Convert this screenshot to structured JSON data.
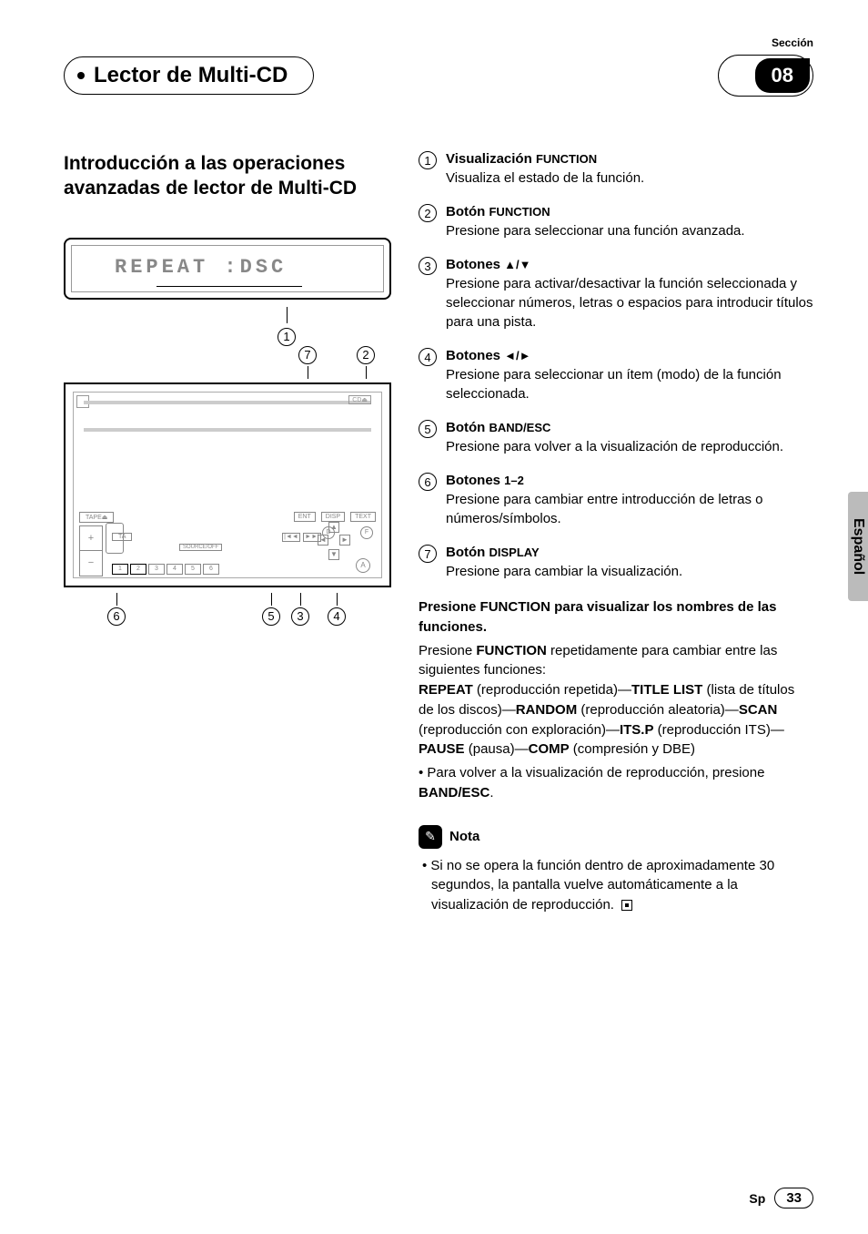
{
  "section_label": "Sección",
  "section_number": "08",
  "page_title": "Lector de Multi-CD",
  "subheading": "Introducción a las operaciones avanzadas de lector de Multi-CD",
  "lcd_text": "REPEAT :DSC",
  "side_tab": "Español",
  "footer_lang": "Sp",
  "page_number": "33",
  "callouts": {
    "c1": "1",
    "c2": "2",
    "c3": "3",
    "c4": "4",
    "c5": "5",
    "c6": "6",
    "c7": "7"
  },
  "definitions": [
    {
      "num": "1",
      "title_a": "Visualización ",
      "title_b": "FUNCTION",
      "text": "Visualiza el estado de la función."
    },
    {
      "num": "2",
      "title_a": "Botón ",
      "title_b": "FUNCTION",
      "text": "Presione para seleccionar una función avanzada."
    },
    {
      "num": "3",
      "title_a": "Botones ",
      "title_b": "▲/▼",
      "text": "Presione para activar/desactivar la función seleccionada y seleccionar números, letras o espacios para introducir títulos para una pista."
    },
    {
      "num": "4",
      "title_a": "Botones ",
      "title_b": "◄/►",
      "text": "Presione para seleccionar un ítem (modo) de la función seleccionada."
    },
    {
      "num": "5",
      "title_a": "Botón ",
      "title_b": "BAND/ESC",
      "text": "Presione para volver a la visualización de reproducción."
    },
    {
      "num": "6",
      "title_a": "Botones ",
      "title_b": "1–2",
      "text": "Presione para cambiar entre introducción de letras o números/símbolos."
    },
    {
      "num": "7",
      "title_a": "Botón ",
      "title_b": "DISPLAY",
      "text": "Presione para cambiar la visualización."
    }
  ],
  "instruction": {
    "lead": "Presione FUNCTION para visualizar los nombres de las funciones.",
    "p1a": "Presione ",
    "p1b": "FUNCTION",
    "p1c": " repetidamente para cambiar entre las siguientes funciones:",
    "seq": [
      {
        "b": "REPEAT",
        "t": " (reproducción repetida)—"
      },
      {
        "b": "TITLE LIST",
        "t": " (lista de títulos de los discos)—"
      },
      {
        "b": "RANDOM",
        "t": " (reproducción aleatoria)—"
      },
      {
        "b": "SCAN",
        "t": " (reproducción con exploración)—"
      },
      {
        "b": "ITS.P",
        "t": " (reproducción ITS)—"
      },
      {
        "b": "PAUSE",
        "t": " (pausa)—"
      },
      {
        "b": "COMP",
        "t": " (compresión y DBE)"
      }
    ],
    "bullet_a": "• Para volver a la visualización de reproducción, presione ",
    "bullet_b": "BAND/ESC",
    "bullet_c": "."
  },
  "note": {
    "title": "Nota",
    "body": "• Si no se opera la función dentro de aproximadamente 30 segundos, la pantalla vuelve automáticamente a la visualización de reproducción."
  },
  "device_labels": {
    "cd": "CD⏏",
    "tape": "TAPE⏏",
    "ent": "ENT",
    "disp": "DISP",
    "text": "TEXT",
    "d": "D",
    "f": "F",
    "ta": "TA",
    "src": "SOURCE/OFF",
    "prev": "|◄◄",
    "next": "►►|",
    "a": "A",
    "n1": "1",
    "n2": "2",
    "n3": "3",
    "n4": "4",
    "n5": "5",
    "n6": "6",
    "plus": "+",
    "minus": "−",
    "up": "▲",
    "down": "▼",
    "left": "◄",
    "right": "►"
  },
  "colors": {
    "text": "#000000",
    "muted": "#888888",
    "side_tab_bg": "#bbbbbb",
    "background": "#ffffff"
  }
}
